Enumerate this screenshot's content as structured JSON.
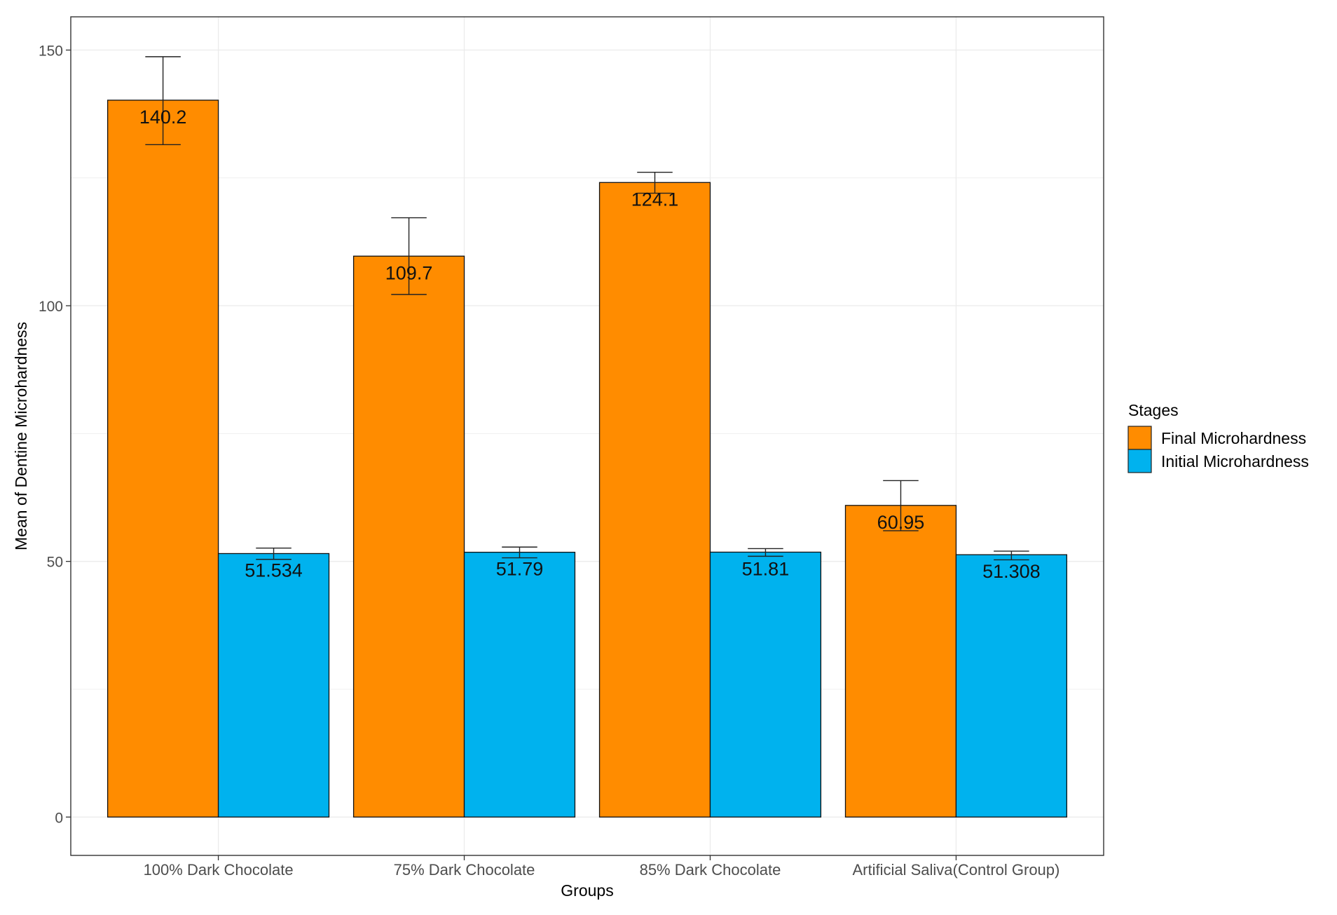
{
  "chart_data": {
    "type": "bar",
    "title": "",
    "xlabel": "Groups",
    "ylabel": "Mean of Dentine Microhardness",
    "categories": [
      "100% Dark Chocolate",
      "75% Dark Chocolate",
      "85% Dark Chocolate",
      "Artificial Saliva(Control Group)"
    ],
    "series": [
      {
        "name": "Final Microhardness",
        "color": "#FF8C00",
        "values": [
          140.2,
          109.7,
          124.1,
          60.95
        ],
        "labels": [
          "140.2",
          "109.7",
          "124.1",
          "60.95"
        ],
        "error_low": [
          131.5,
          102.2,
          122.0,
          56.0
        ],
        "error_high": [
          148.7,
          117.2,
          126.1,
          65.8
        ]
      },
      {
        "name": "Initial Microhardness",
        "color": "#00B2EE",
        "values": [
          51.534,
          51.79,
          51.81,
          51.308
        ],
        "labels": [
          "51.534",
          "51.79",
          "51.81",
          "51.308"
        ],
        "error_low": [
          50.4,
          50.7,
          51.0,
          50.3
        ],
        "error_high": [
          52.6,
          52.8,
          52.5,
          52.0
        ]
      }
    ],
    "ylim": [
      -7.5,
      156.5
    ],
    "yticks": [
      0,
      50,
      100,
      150
    ],
    "grid": true,
    "legend": {
      "title": "Stages",
      "position": "right"
    }
  }
}
